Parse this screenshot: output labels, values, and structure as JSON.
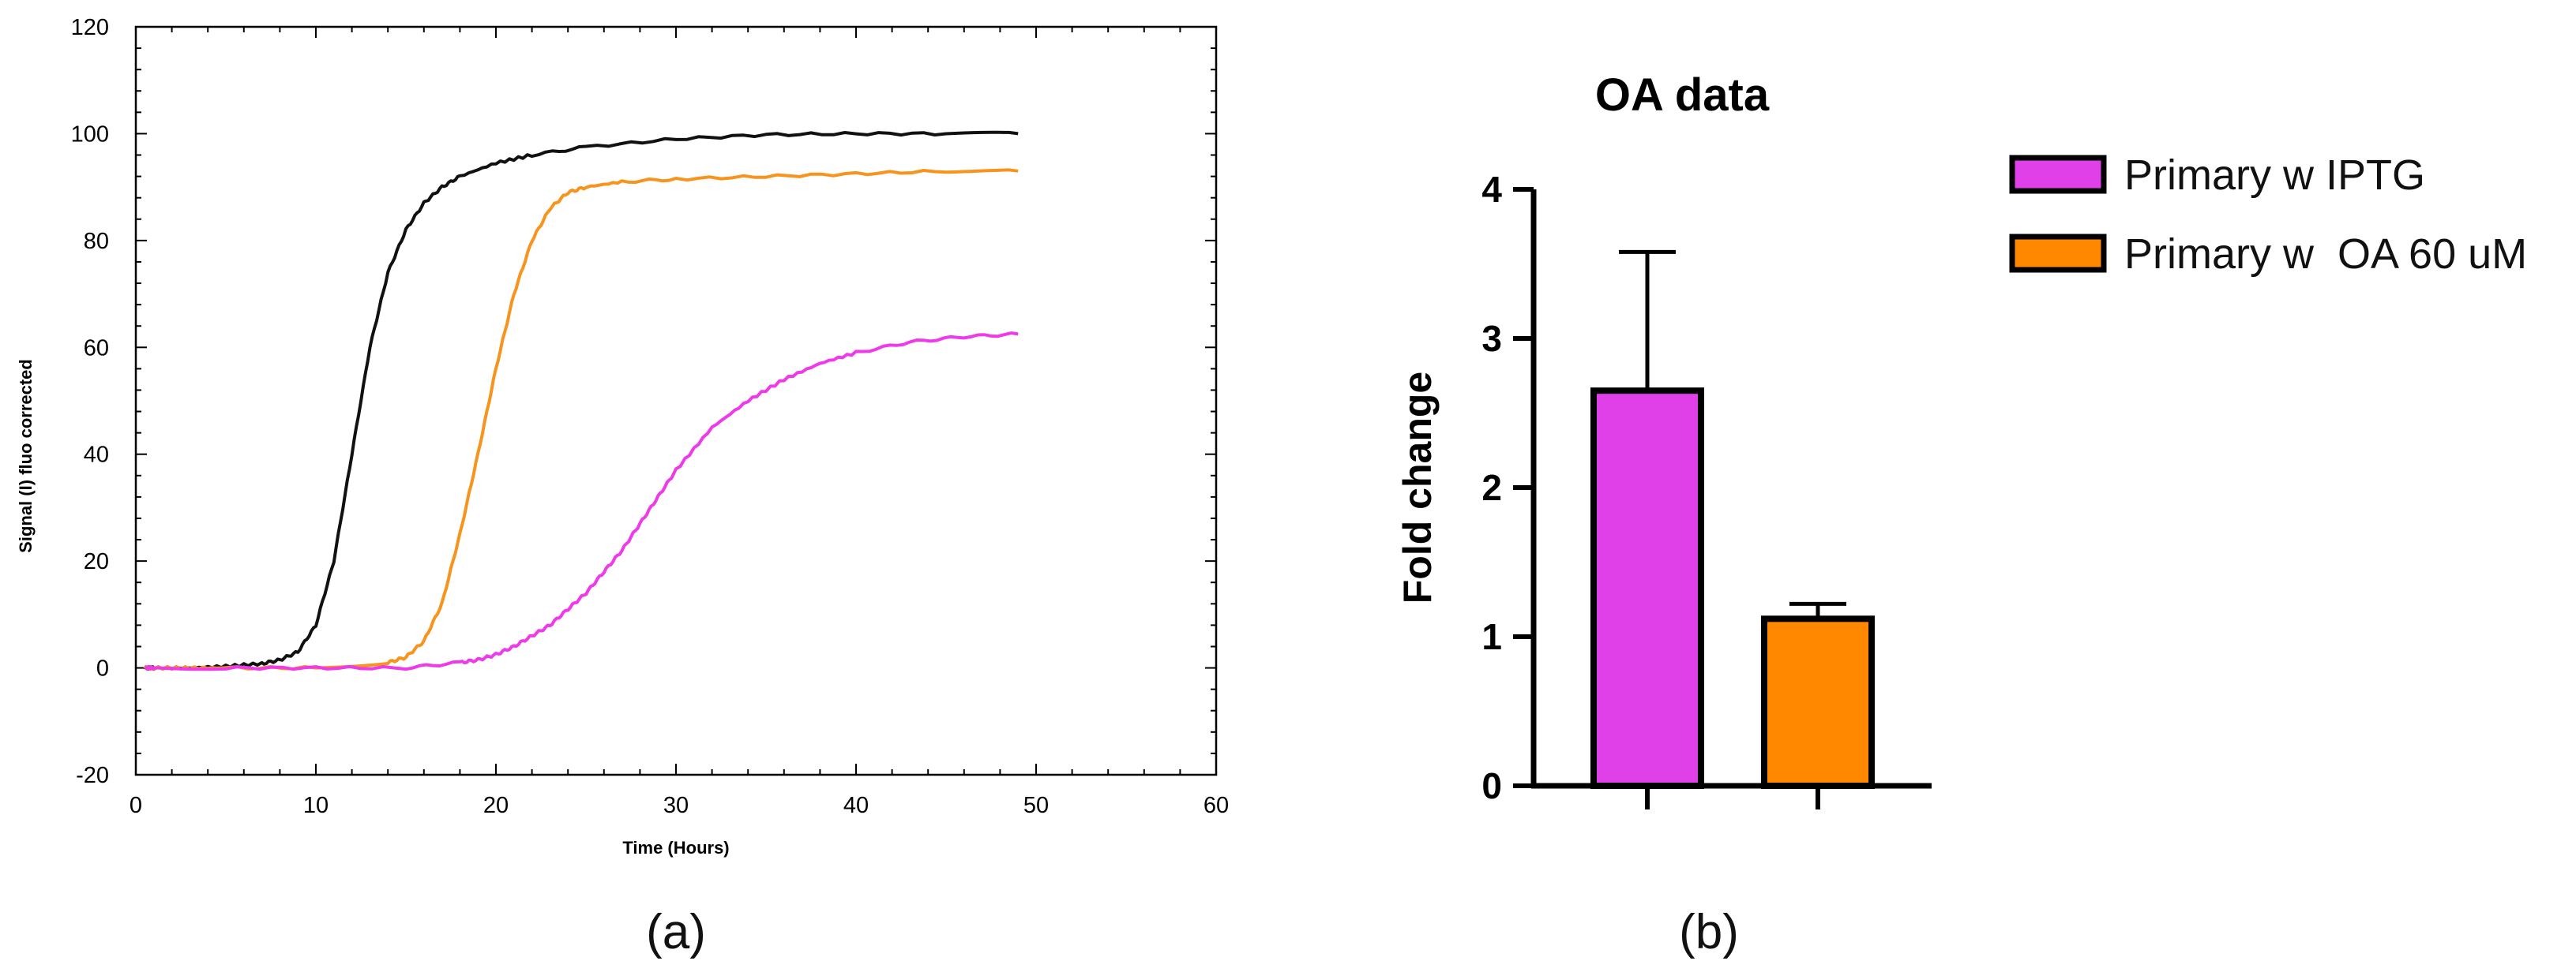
{
  "panel_labels": {
    "a": "(a)",
    "b": "(b)"
  },
  "colors": {
    "black_series": "#111111",
    "orange": "#f7941d",
    "magenta": "#ee3ae8",
    "bar_magenta": "#e040e8",
    "bar_orange": "#ff8800"
  },
  "chart_data": [
    {
      "type": "line",
      "title": "",
      "xlabel": "Time (Hours)",
      "ylabel": "Signal (I) fluo corrected",
      "xlim": [
        0,
        60
      ],
      "ylim": [
        -20,
        120
      ],
      "xticks": [
        "0",
        "10",
        "20",
        "30",
        "40",
        "50",
        "60"
      ],
      "yticks": [
        "-20",
        "0",
        "20",
        "40",
        "60",
        "80",
        "100",
        "120"
      ],
      "series": [
        {
          "name": "black",
          "color": "#111111",
          "x": [
            0.5,
            1,
            3,
            5,
            7,
            8,
            9,
            10,
            11,
            12,
            13,
            14,
            15,
            16,
            17,
            18,
            20,
            22,
            25,
            30,
            35,
            40,
            45,
            49
          ],
          "y": [
            0,
            0,
            0,
            0.3,
            0.8,
            1.5,
            3,
            8,
            20,
            40,
            60,
            74,
            82,
            87,
            90,
            92,
            94.5,
            96,
            97.5,
            99,
            99.8,
            100,
            100,
            100
          ]
        },
        {
          "name": "orange",
          "color": "#f7941d",
          "x": [
            0.5,
            1,
            3,
            5,
            10,
            14,
            15,
            16,
            17,
            18,
            19,
            20,
            21,
            22,
            23,
            24,
            25,
            27,
            30,
            35,
            40,
            45,
            49
          ],
          "y": [
            0,
            0,
            0,
            0,
            0,
            1,
            2,
            5,
            12,
            25,
            40,
            56,
            70,
            80,
            86,
            89,
            90,
            91,
            91.5,
            92,
            92.5,
            93,
            93
          ]
        },
        {
          "name": "magenta",
          "color": "#ee3ae8",
          "x": [
            0.5,
            1,
            5,
            10,
            15,
            18,
            19,
            20,
            21,
            22,
            23,
            24,
            25,
            26,
            27,
            28,
            29,
            30,
            32,
            34,
            36,
            38,
            40,
            43,
            46,
            49
          ],
          "y": [
            0,
            0,
            0,
            0,
            0,
            1,
            1.5,
            2.5,
            4,
            6,
            8,
            11,
            14,
            18,
            22,
            27,
            32,
            37,
            45,
            50,
            54,
            57,
            59,
            61,
            62,
            62.5
          ]
        }
      ]
    },
    {
      "type": "bar",
      "title": "OA data",
      "xlabel": "",
      "ylabel": "Fold change",
      "ylim": [
        0,
        4
      ],
      "yticks": [
        "0",
        "1",
        "2",
        "3",
        "4"
      ],
      "categories": [
        "Primary w IPTG",
        "Primary w  OA 60 uM"
      ],
      "values": [
        2.65,
        1.12
      ],
      "errors": [
        0.93,
        0.1
      ],
      "colors": [
        "#e040e8",
        "#ff8800"
      ],
      "legend_position": "right"
    }
  ]
}
